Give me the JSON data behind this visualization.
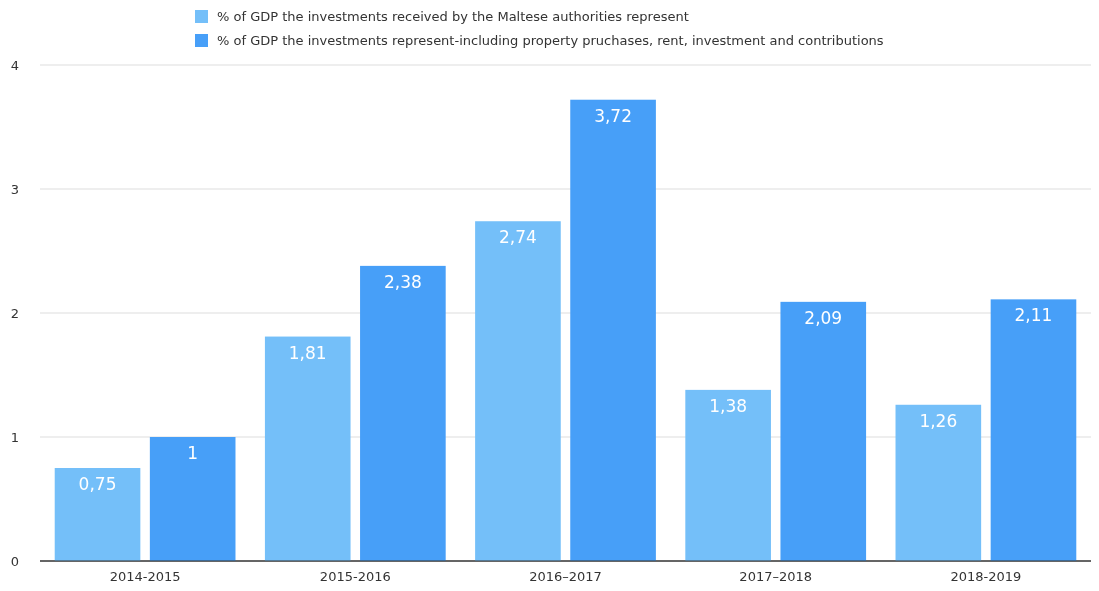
{
  "chart_data": {
    "type": "bar",
    "categories": [
      "2014-2015",
      "2015-2016",
      "2016–2017",
      "2017–2018",
      "2018-2019"
    ],
    "series": [
      {
        "name": "% of GDP the investments received by the Maltese authorities represent",
        "color": "#74bff9",
        "values": [
          0.75,
          1.81,
          2.74,
          1.38,
          1.26
        ],
        "value_labels": [
          "0,75",
          "1,81",
          "2,74",
          "1,38",
          "1,26"
        ]
      },
      {
        "name": "% of GDP the investments represent-including property pruchases, rent, investment and contributions",
        "color": "#479ff8",
        "values": [
          1,
          2.38,
          3.72,
          2.09,
          2.11
        ],
        "value_labels": [
          "1",
          "2,38",
          "3,72",
          "2,09",
          "2,11"
        ]
      }
    ],
    "ylim": [
      0,
      4
    ],
    "yticks": [
      0,
      1,
      2,
      3,
      4
    ],
    "grid": "y",
    "legend": "top"
  }
}
